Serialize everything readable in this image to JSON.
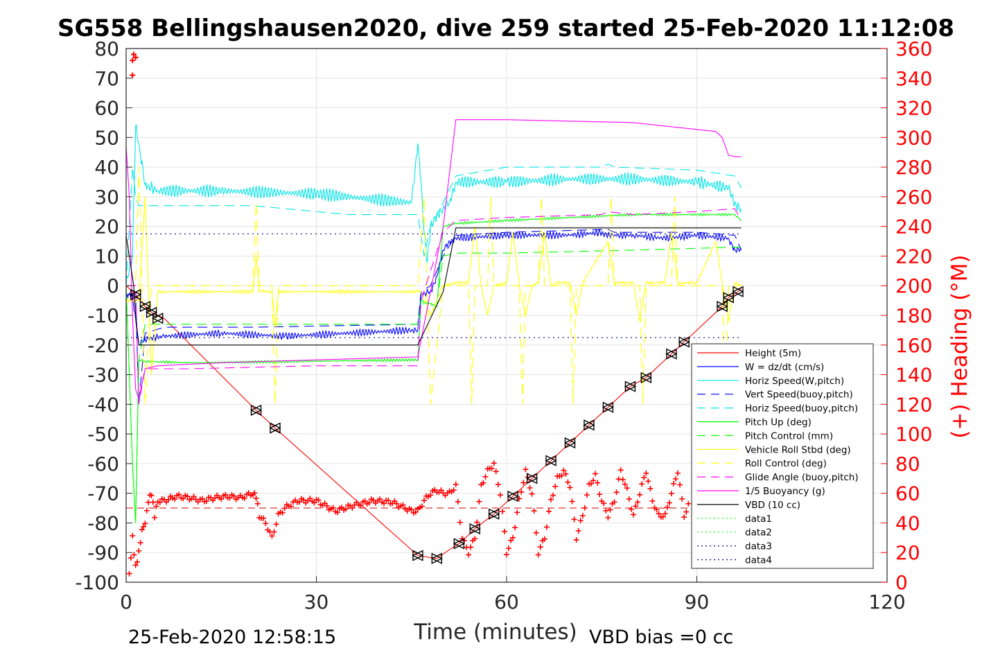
{
  "title": "SG558 Bellingshausen2020, dive 259 started 25-Feb-2020 11:12:08",
  "footer_left": "25-Feb-2020 12:58:15",
  "footer_right": "VBD bias =0 cc",
  "chart_data": {
    "type": "line",
    "title": "SG558 Bellingshausen2020, dive 259 started 25-Feb-2020 11:12:08",
    "xlabel": "Time (minutes)",
    "ylabel": "",
    "y2label": "(+) Heading (°M)",
    "xlim": [
      0,
      120
    ],
    "ylim": [
      -100,
      80
    ],
    "y2lim": [
      0,
      360
    ],
    "xticks": [
      "0",
      "30",
      "60",
      "90",
      "120"
    ],
    "yticks": [
      "80",
      "70",
      "60",
      "50",
      "40",
      "30",
      "20",
      "10",
      "0",
      "-10",
      "-20",
      "-30",
      "-40",
      "-50",
      "-60",
      "-70",
      "-80",
      "-90",
      "-100"
    ],
    "y2ticks": [
      "360",
      "340",
      "320",
      "300",
      "280",
      "260",
      "240",
      "220",
      "200",
      "180",
      "160",
      "140",
      "120",
      "100",
      "80",
      "60",
      "40",
      "20",
      "0"
    ],
    "grid": true,
    "legend_position": "bottom-right",
    "series": [
      {
        "name": "Height (5m)",
        "color": "#ff0000",
        "style": "solid",
        "x": [
          0,
          1.5,
          3,
          4,
          5,
          6,
          20.5,
          23.5,
          46,
          49,
          51,
          52.5,
          55,
          58,
          61,
          64,
          67,
          70,
          73,
          76,
          79.5,
          82,
          86,
          88,
          94,
          95,
          96.5,
          97
        ],
        "y": [
          0,
          -3,
          -7,
          -9,
          -10,
          -11,
          -42,
          -48,
          -91,
          -92,
          -89,
          -87,
          -82,
          -77,
          -71,
          -65,
          -59,
          -53,
          -47,
          -41,
          -34,
          -31,
          -23,
          -19,
          -7,
          -4,
          -2,
          -1
        ]
      },
      {
        "name": "W = dz/dt (cm/s)",
        "color": "#0000ff",
        "style": "solid",
        "noise": 0.8,
        "x": [
          0,
          1,
          2,
          3,
          6,
          15,
          25,
          35,
          45,
          46,
          46.5,
          48,
          49,
          50,
          51,
          52,
          60,
          70,
          75,
          76,
          80,
          85,
          90,
          95,
          96,
          97
        ],
        "y": [
          -3,
          -3,
          -20,
          -18,
          -17,
          -16,
          -17,
          -16,
          -15,
          -15,
          -3,
          -2,
          3,
          12,
          15,
          16,
          17,
          17,
          18,
          17,
          17,
          16,
          17,
          16,
          12,
          12
        ]
      },
      {
        "name": "Horiz Speed(W,pitch)",
        "color": "#00e6e6",
        "style": "solid",
        "noise": 1.4,
        "x": [
          0,
          1,
          1.5,
          2,
          3,
          5,
          15,
          30,
          45,
          46,
          46.5,
          47,
          47.5,
          48,
          49,
          50,
          51,
          52,
          60,
          70,
          80,
          90,
          95,
          96,
          97
        ],
        "y": [
          0,
          10,
          54,
          48,
          34,
          32,
          32,
          31,
          28,
          48,
          35,
          18,
          8,
          20,
          24,
          26,
          28,
          35,
          35,
          36,
          36,
          35,
          33,
          28,
          26
        ]
      },
      {
        "name": "Vert Speed(buoy,pitch)",
        "color": "#0000ff",
        "style": "dashed",
        "x": [
          0,
          1.5,
          2,
          3,
          6,
          20,
          46,
          46.5,
          48,
          50,
          52,
          60,
          76,
          77,
          90,
          96,
          97
        ],
        "y": [
          -3,
          -3,
          -40,
          -16,
          -14,
          -14,
          -13,
          -2,
          0,
          10,
          17,
          18,
          19,
          18,
          18,
          17,
          12
        ]
      },
      {
        "name": "Horiz Speed(buoy,pitch)",
        "color": "#00e6e6",
        "style": "dashed",
        "x": [
          0,
          1,
          1.5,
          2,
          4,
          8,
          20,
          35,
          46,
          47,
          48,
          50,
          52,
          60,
          75,
          76,
          77,
          90,
          96,
          97
        ],
        "y": [
          0,
          40,
          30,
          27,
          27,
          27,
          27,
          24,
          24,
          10,
          20,
          28,
          37,
          40,
          40,
          41,
          40,
          39,
          37,
          33
        ]
      },
      {
        "name": "Pitch Up (deg)",
        "color": "#00ff00",
        "style": "solid",
        "noise": 0.3,
        "x": [
          0,
          1,
          1.5,
          2,
          3,
          10,
          46,
          46.5,
          48,
          49,
          50,
          52,
          60,
          70,
          80,
          90,
          96,
          97
        ],
        "y": [
          0,
          -60,
          -80,
          -25,
          -25.5,
          -26,
          -25,
          -5,
          -6,
          -7,
          20,
          21,
          22,
          23,
          24,
          24,
          24,
          22
        ]
      },
      {
        "name": "Pitch Control (mm)",
        "color": "#00ff00",
        "style": "dashed",
        "x": [
          0,
          1,
          1.5,
          2,
          3,
          46,
          46.5,
          49,
          50,
          52,
          60,
          80,
          96,
          97
        ],
        "y": [
          0,
          -60,
          -80,
          -25,
          -13,
          -13,
          -6,
          -6,
          10,
          11,
          11,
          12,
          13,
          13
        ]
      },
      {
        "name": "Vehicle Roll Stbd (deg)",
        "color": "#ffff00",
        "style": "solid",
        "noise": 0.4,
        "x": [
          0,
          2,
          3,
          4,
          5,
          6,
          20,
          20.5,
          21,
          22,
          23,
          23.5,
          24,
          46,
          46.5,
          48,
          50,
          52,
          54,
          55,
          56,
          57,
          58,
          60,
          61,
          62,
          63,
          64,
          65,
          66,
          67,
          68,
          70,
          71,
          72,
          76,
          77,
          78,
          80,
          81,
          82,
          85,
          86,
          87,
          88,
          90,
          93,
          94,
          95,
          96,
          97
        ],
        "y": [
          -5,
          -5,
          30,
          -30,
          -2,
          -2,
          -2,
          10,
          -2,
          -2,
          -2,
          -14,
          -2,
          -2,
          -2,
          -10,
          0,
          1,
          1,
          20,
          0,
          -10,
          0,
          1,
          18,
          0,
          -10,
          0,
          1,
          18,
          0,
          1,
          1,
          -10,
          1,
          15,
          1,
          1,
          1,
          -12,
          1,
          1,
          18,
          1,
          1,
          1,
          15,
          1,
          -12,
          1,
          0
        ]
      },
      {
        "name": "Roll Control (deg)",
        "color": "#ffff00",
        "style": "dashed",
        "x": [
          0,
          1.5,
          2,
          3,
          4,
          5,
          20,
          20.5,
          21,
          23,
          23.5,
          24,
          46,
          47,
          48,
          50,
          52,
          54,
          54.5,
          55,
          57,
          57.5,
          58,
          62,
          62.5,
          63,
          65,
          65.5,
          66,
          70,
          70.5,
          71,
          76,
          76.5,
          77,
          81,
          81.5,
          82,
          86,
          86.5,
          87,
          94,
          94.5,
          95,
          97
        ],
        "y": [
          0,
          0,
          40,
          -40,
          0,
          0,
          0,
          28,
          0,
          0,
          -40,
          0,
          0,
          30,
          -40,
          0,
          0,
          0,
          -40,
          0,
          0,
          30,
          0,
          0,
          -40,
          0,
          0,
          30,
          0,
          0,
          -40,
          0,
          0,
          30,
          0,
          0,
          -40,
          0,
          0,
          30,
          0,
          0,
          -40,
          0,
          0
        ]
      },
      {
        "name": "Glide Angle (buoy,pitch)",
        "color": "#ff00ff",
        "style": "dashed",
        "x": [
          0,
          1.5,
          2,
          3,
          10,
          30,
          46,
          46.5,
          48,
          50,
          52,
          60,
          75,
          76,
          80,
          90,
          96,
          97
        ],
        "y": [
          0,
          0,
          -40,
          -28,
          -28,
          -27,
          -27,
          -5,
          5,
          18,
          22,
          23,
          24,
          25,
          24,
          25,
          26,
          22
        ]
      },
      {
        "name": "1/5 Buoyancy (g)",
        "color": "#ff00ff",
        "style": "solid",
        "x": [
          0,
          0.5,
          1,
          1.5,
          2,
          3,
          5,
          15,
          30,
          46,
          48,
          50,
          52,
          60,
          80,
          93,
          94,
          95,
          96,
          97
        ],
        "y": [
          47,
          30,
          -10,
          -35,
          -38,
          -28,
          -27,
          -26,
          -25,
          -24,
          -2,
          20,
          56,
          56,
          55,
          52,
          50,
          44,
          43.5,
          43.5
        ]
      },
      {
        "name": "VBD (10 cc)",
        "color": "#000000",
        "style": "solid",
        "x": [
          0,
          1.2,
          1.5,
          2,
          46,
          50,
          52,
          97
        ],
        "y": [
          17,
          0,
          -10,
          -20,
          -20,
          -2,
          19.5,
          19.5
        ]
      },
      {
        "name": "data1",
        "color": "#00ff00",
        "style": "dotted",
        "x": [],
        "y": []
      },
      {
        "name": "data2",
        "color": "#00ff00",
        "style": "dotted",
        "x": [],
        "y": []
      },
      {
        "name": "data3",
        "color": "#00008b",
        "style": "dotted",
        "x": [
          0,
          97
        ],
        "y": [
          17.5,
          17.5
        ]
      },
      {
        "name": "data4",
        "color": "#00008b",
        "style": "dotted",
        "x": [
          0,
          97
        ],
        "y": [
          -17.5,
          -17.5
        ]
      }
    ],
    "heading": {
      "axis": "right",
      "color": "#ff0000",
      "marker": "+",
      "mean_line": 50,
      "x": [
        0.5,
        1,
        1.5,
        2,
        2.5,
        3,
        3.5,
        4,
        4.5,
        5,
        6,
        8,
        10,
        12,
        14,
        16,
        18,
        20,
        20.5,
        21,
        22,
        23,
        24,
        25,
        27,
        30,
        33,
        36,
        39,
        42,
        45,
        46,
        47,
        48,
        49,
        50,
        51,
        52,
        53,
        54,
        55,
        56,
        57,
        58,
        59,
        60,
        61,
        62,
        63,
        64,
        65,
        66,
        67,
        68,
        69,
        70,
        71,
        72,
        73,
        74,
        75,
        76,
        77,
        78,
        79,
        80,
        81,
        82,
        83,
        84,
        85,
        86,
        87,
        88,
        89
      ],
      "y": [
        5,
        30,
        10,
        20,
        35,
        40,
        55,
        60,
        45,
        55,
        55,
        58,
        57,
        55,
        57,
        58,
        57,
        60,
        58,
        45,
        40,
        30,
        45,
        50,
        55,
        55,
        48,
        52,
        55,
        54,
        48,
        48,
        55,
        60,
        62,
        60,
        60,
        65,
        30,
        20,
        30,
        65,
        75,
        80,
        60,
        20,
        30,
        55,
        75,
        60,
        20,
        30,
        55,
        70,
        75,
        65,
        30,
        45,
        65,
        72,
        55,
        45,
        55,
        75,
        62,
        45,
        60,
        75,
        55,
        45,
        45,
        60,
        75,
        45,
        55
      ]
    }
  },
  "legend": {
    "items": [
      {
        "label": "Height (5m)",
        "color": "#ff0000",
        "style": "solid"
      },
      {
        "label": "W = dz/dt (cm/s)",
        "color": "#0000ff",
        "style": "solid"
      },
      {
        "label": "Horiz Speed(W,pitch)",
        "color": "#00e6e6",
        "style": "solid"
      },
      {
        "label": "Vert Speed(buoy,pitch)",
        "color": "#0000ff",
        "style": "dashed"
      },
      {
        "label": "Horiz Speed(buoy,pitch)",
        "color": "#00e6e6",
        "style": "dashed"
      },
      {
        "label": "Pitch Up (deg)",
        "color": "#00ff00",
        "style": "solid"
      },
      {
        "label": "Pitch Control (mm)",
        "color": "#00ff00",
        "style": "dashed"
      },
      {
        "label": "Vehicle Roll Stbd (deg)",
        "color": "#ffff00",
        "style": "solid"
      },
      {
        "label": "Roll Control (deg)",
        "color": "#ffff00",
        "style": "dashed"
      },
      {
        "label": "Glide Angle (buoy,pitch)",
        "color": "#ff00ff",
        "style": "dashed"
      },
      {
        "label": "1/5 Buoyancy (g)",
        "color": "#ff00ff",
        "style": "solid"
      },
      {
        "label": "VBD (10 cc)",
        "color": "#000000",
        "style": "solid"
      },
      {
        "label": "data1",
        "color": "#00ff00",
        "style": "dotted"
      },
      {
        "label": "data2",
        "color": "#00ff00",
        "style": "dotted"
      },
      {
        "label": "data3",
        "color": "#00008b",
        "style": "dotted"
      },
      {
        "label": "data4",
        "color": "#00008b",
        "style": "dotted"
      }
    ]
  }
}
